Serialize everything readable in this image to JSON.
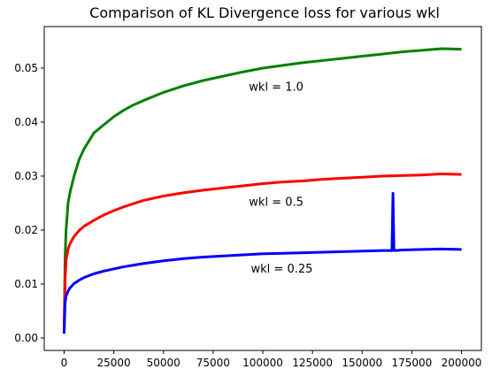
{
  "chart_data": {
    "type": "line",
    "title": "Comparison of KL Divergence loss for various wkl",
    "xlabel": "",
    "ylabel": "",
    "xlim": [
      -10000,
      210000
    ],
    "ylim": [
      -0.0023,
      0.0577
    ],
    "x_ticks": [
      0,
      25000,
      50000,
      75000,
      100000,
      125000,
      150000,
      175000,
      200000
    ],
    "x_tick_labels": [
      "0",
      "25000",
      "50000",
      "75000",
      "100000",
      "125000",
      "150000",
      "175000",
      "200000"
    ],
    "y_ticks": [
      0.0,
      0.01,
      0.02,
      0.03,
      0.04,
      0.05
    ],
    "y_tick_labels": [
      "0.00",
      "0.01",
      "0.02",
      "0.03",
      "0.04",
      "0.05"
    ],
    "grid": false,
    "legend": "none",
    "series": [
      {
        "label": "wkl = 1.0",
        "color": "#008000",
        "x": [
          0,
          500,
          1000,
          2000,
          3000,
          5000,
          7500,
          10000,
          15000,
          20000,
          25000,
          30000,
          35000,
          40000,
          50000,
          60000,
          70000,
          80000,
          90000,
          100000,
          110000,
          120000,
          130000,
          140000,
          150000,
          160000,
          170000,
          180000,
          190000,
          200000
        ],
        "y": [
          0.001,
          0.015,
          0.02,
          0.025,
          0.027,
          0.03,
          0.033,
          0.035,
          0.038,
          0.0395,
          0.041,
          0.0422,
          0.0432,
          0.044,
          0.0455,
          0.0467,
          0.0477,
          0.0485,
          0.0493,
          0.05,
          0.0505,
          0.051,
          0.0514,
          0.0518,
          0.0522,
          0.0526,
          0.053,
          0.0533,
          0.0536,
          0.0535
        ]
      },
      {
        "label": "wkl = 0.5",
        "color": "#ff0000",
        "x": [
          0,
          500,
          1000,
          2000,
          3000,
          5000,
          7500,
          10000,
          15000,
          20000,
          25000,
          30000,
          35000,
          40000,
          50000,
          60000,
          70000,
          80000,
          90000,
          100000,
          110000,
          120000,
          130000,
          140000,
          150000,
          160000,
          170000,
          180000,
          190000,
          200000
        ],
        "y": [
          0.001,
          0.011,
          0.0145,
          0.0165,
          0.0175,
          0.0188,
          0.0199,
          0.0207,
          0.0218,
          0.0228,
          0.0236,
          0.0243,
          0.0249,
          0.0255,
          0.0263,
          0.0269,
          0.0274,
          0.0278,
          0.0282,
          0.0286,
          0.0289,
          0.0291,
          0.0294,
          0.0296,
          0.0298,
          0.03,
          0.0301,
          0.0302,
          0.0304,
          0.0303
        ]
      },
      {
        "label": "wkl = 0.25",
        "color": "#0000ff",
        "x": [
          0,
          500,
          1000,
          2000,
          3000,
          5000,
          7500,
          10000,
          15000,
          20000,
          25000,
          30000,
          35000,
          40000,
          50000,
          60000,
          70000,
          80000,
          90000,
          100000,
          110000,
          120000,
          130000,
          140000,
          150000,
          160000,
          165000,
          165500,
          166000,
          166500,
          167000,
          170000,
          180000,
          190000,
          200000
        ],
        "y": [
          0.0008,
          0.0065,
          0.0078,
          0.0087,
          0.0093,
          0.0101,
          0.0107,
          0.0112,
          0.0119,
          0.0124,
          0.0128,
          0.0132,
          0.0135,
          0.0138,
          0.0143,
          0.0147,
          0.015,
          0.0152,
          0.0154,
          0.0156,
          0.0157,
          0.0158,
          0.0159,
          0.016,
          0.0161,
          0.0162,
          0.0162,
          0.0268,
          0.0162,
          0.0163,
          0.0162,
          0.0163,
          0.0164,
          0.0165,
          0.0164
        ]
      }
    ],
    "annotations": [
      {
        "text": "wkl = 1.0",
        "x": 93000,
        "y": 0.0458
      },
      {
        "text": "wkl = 0.5",
        "x": 93000,
        "y": 0.0245
      },
      {
        "text": "wkl = 0.25",
        "x": 94000,
        "y": 0.0121
      }
    ]
  }
}
